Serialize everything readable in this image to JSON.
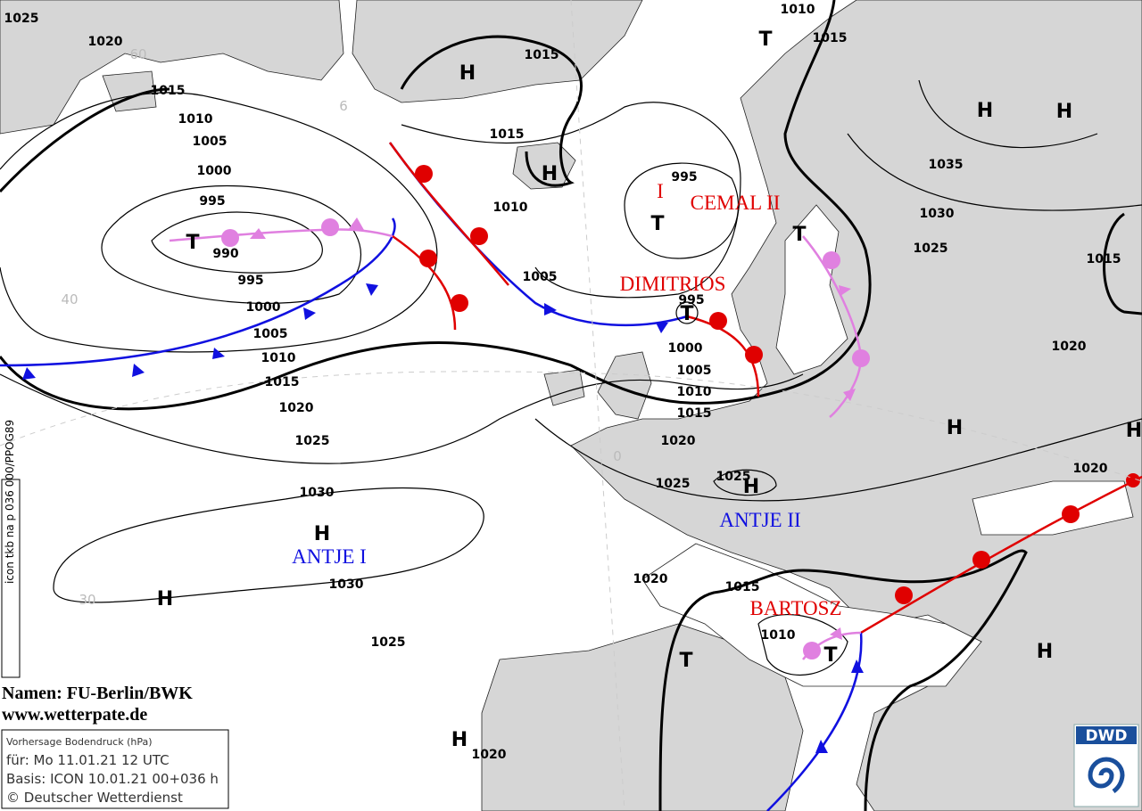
{
  "isobar_labels": [
    "1025",
    "1020",
    "1015",
    "1010",
    "1005",
    "1000",
    "995",
    "990",
    "995",
    "1000",
    "1005",
    "1010",
    "1015",
    "1020",
    "1025",
    "1030",
    "1030",
    "1025",
    "1015",
    "1015",
    "1010",
    "1005",
    "995",
    "995",
    "1000",
    "1005",
    "1010",
    "1015",
    "1020",
    "1025",
    "1025",
    "1010",
    "1015",
    "1035",
    "1030",
    "1025",
    "1015",
    "1020",
    "1020",
    "1020",
    "1015",
    "1010",
    "1020"
  ],
  "pressure_centers": [
    "H",
    "H",
    "T",
    "H",
    "H",
    "T",
    "T",
    "T",
    "T",
    "H",
    "H",
    "H",
    "H",
    "H",
    "T",
    "T",
    "H",
    "H"
  ],
  "front_marker": "I",
  "system_names": [
    {
      "text": "CEMAL II",
      "color": "#e00000"
    },
    {
      "text": "DIMITRIOS",
      "color": "#e00000"
    },
    {
      "text": "ANTJE II",
      "color": "#1010e0"
    },
    {
      "text": "ANTJE I",
      "color": "#1010e0"
    },
    {
      "text": "BARTOSZ",
      "color": "#e00000"
    }
  ],
  "grid_labels": [
    "60",
    "6",
    "40",
    "30",
    "0"
  ],
  "side_code": "icon tkb na p 036 000/PPOG89",
  "credits": {
    "names": "Namen: FU-Berlin/BWK",
    "website": "www.wetterpate.de"
  },
  "info_box": {
    "title": "Vorhersage Bodendruck (hPa)",
    "valid": "für:  Mo 11.01.21  12 UTC",
    "basis": "Basis: ICON  10.01.21 00+036 h",
    "copyright": "© Deutscher Wetterdienst"
  },
  "logo": "DWD"
}
